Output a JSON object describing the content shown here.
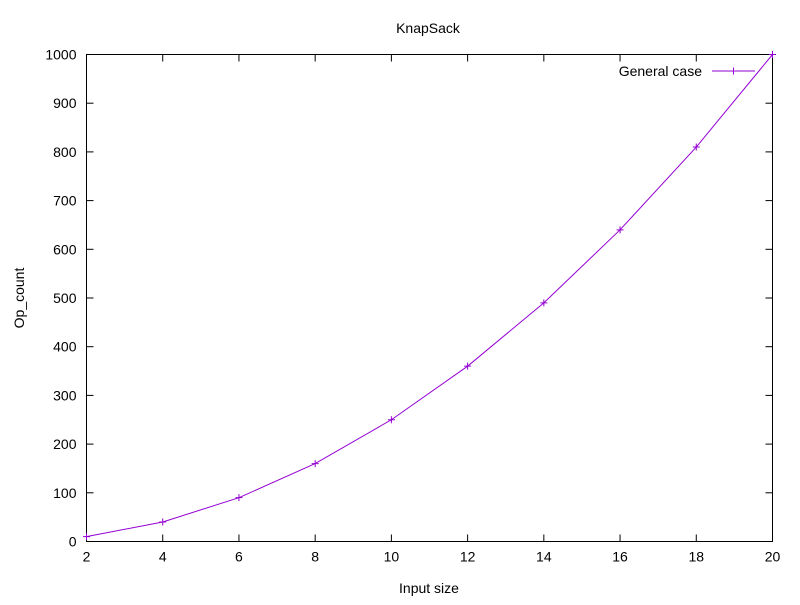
{
  "chart_data": {
    "type": "line",
    "title": "KnapSack",
    "xlabel": "Input size",
    "ylabel": "Op_count",
    "x": [
      2,
      4,
      6,
      8,
      10,
      12,
      14,
      16,
      18,
      20
    ],
    "series": [
      {
        "name": "General case",
        "color": "#9400d3",
        "marker": "plus",
        "values": [
          10,
          40,
          90,
          160,
          250,
          360,
          490,
          640,
          810,
          1000
        ]
      }
    ],
    "xlim": [
      2,
      20
    ],
    "ylim": [
      0,
      1000
    ],
    "xticks": [
      2,
      4,
      6,
      8,
      10,
      12,
      14,
      16,
      18,
      20
    ],
    "yticks": [
      0,
      100,
      200,
      300,
      400,
      500,
      600,
      700,
      800,
      900,
      1000
    ],
    "grid": false,
    "legend": "top-right"
  }
}
